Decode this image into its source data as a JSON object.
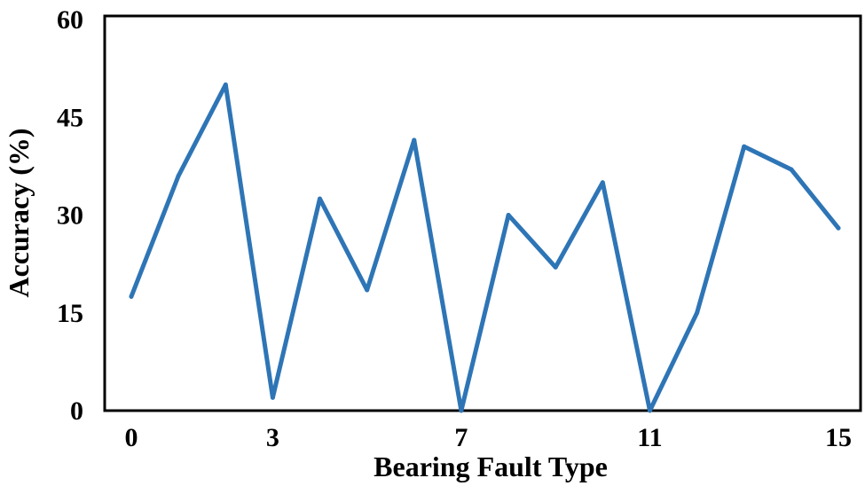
{
  "chart_data": {
    "type": "line",
    "title": "",
    "xlabel": "Bearing Fault Type",
    "ylabel": "Accuracy (%)",
    "xlim": [
      0,
      15
    ],
    "ylim": [
      0,
      60
    ],
    "x_ticks": [
      0,
      3,
      7,
      11,
      15
    ],
    "y_ticks": [
      0,
      15,
      30,
      45,
      60
    ],
    "grid": false,
    "legend": "none",
    "series": [
      {
        "color": "#2e75b6",
        "x": [
          0,
          1,
          2,
          3,
          4,
          5,
          6,
          7,
          8,
          9,
          10,
          11,
          12,
          13,
          14,
          15
        ],
        "values": [
          17.5,
          36,
          50,
          2,
          32.5,
          18.5,
          41.5,
          0,
          30,
          22,
          35,
          0,
          15,
          40.5,
          37,
          28
        ]
      }
    ]
  }
}
